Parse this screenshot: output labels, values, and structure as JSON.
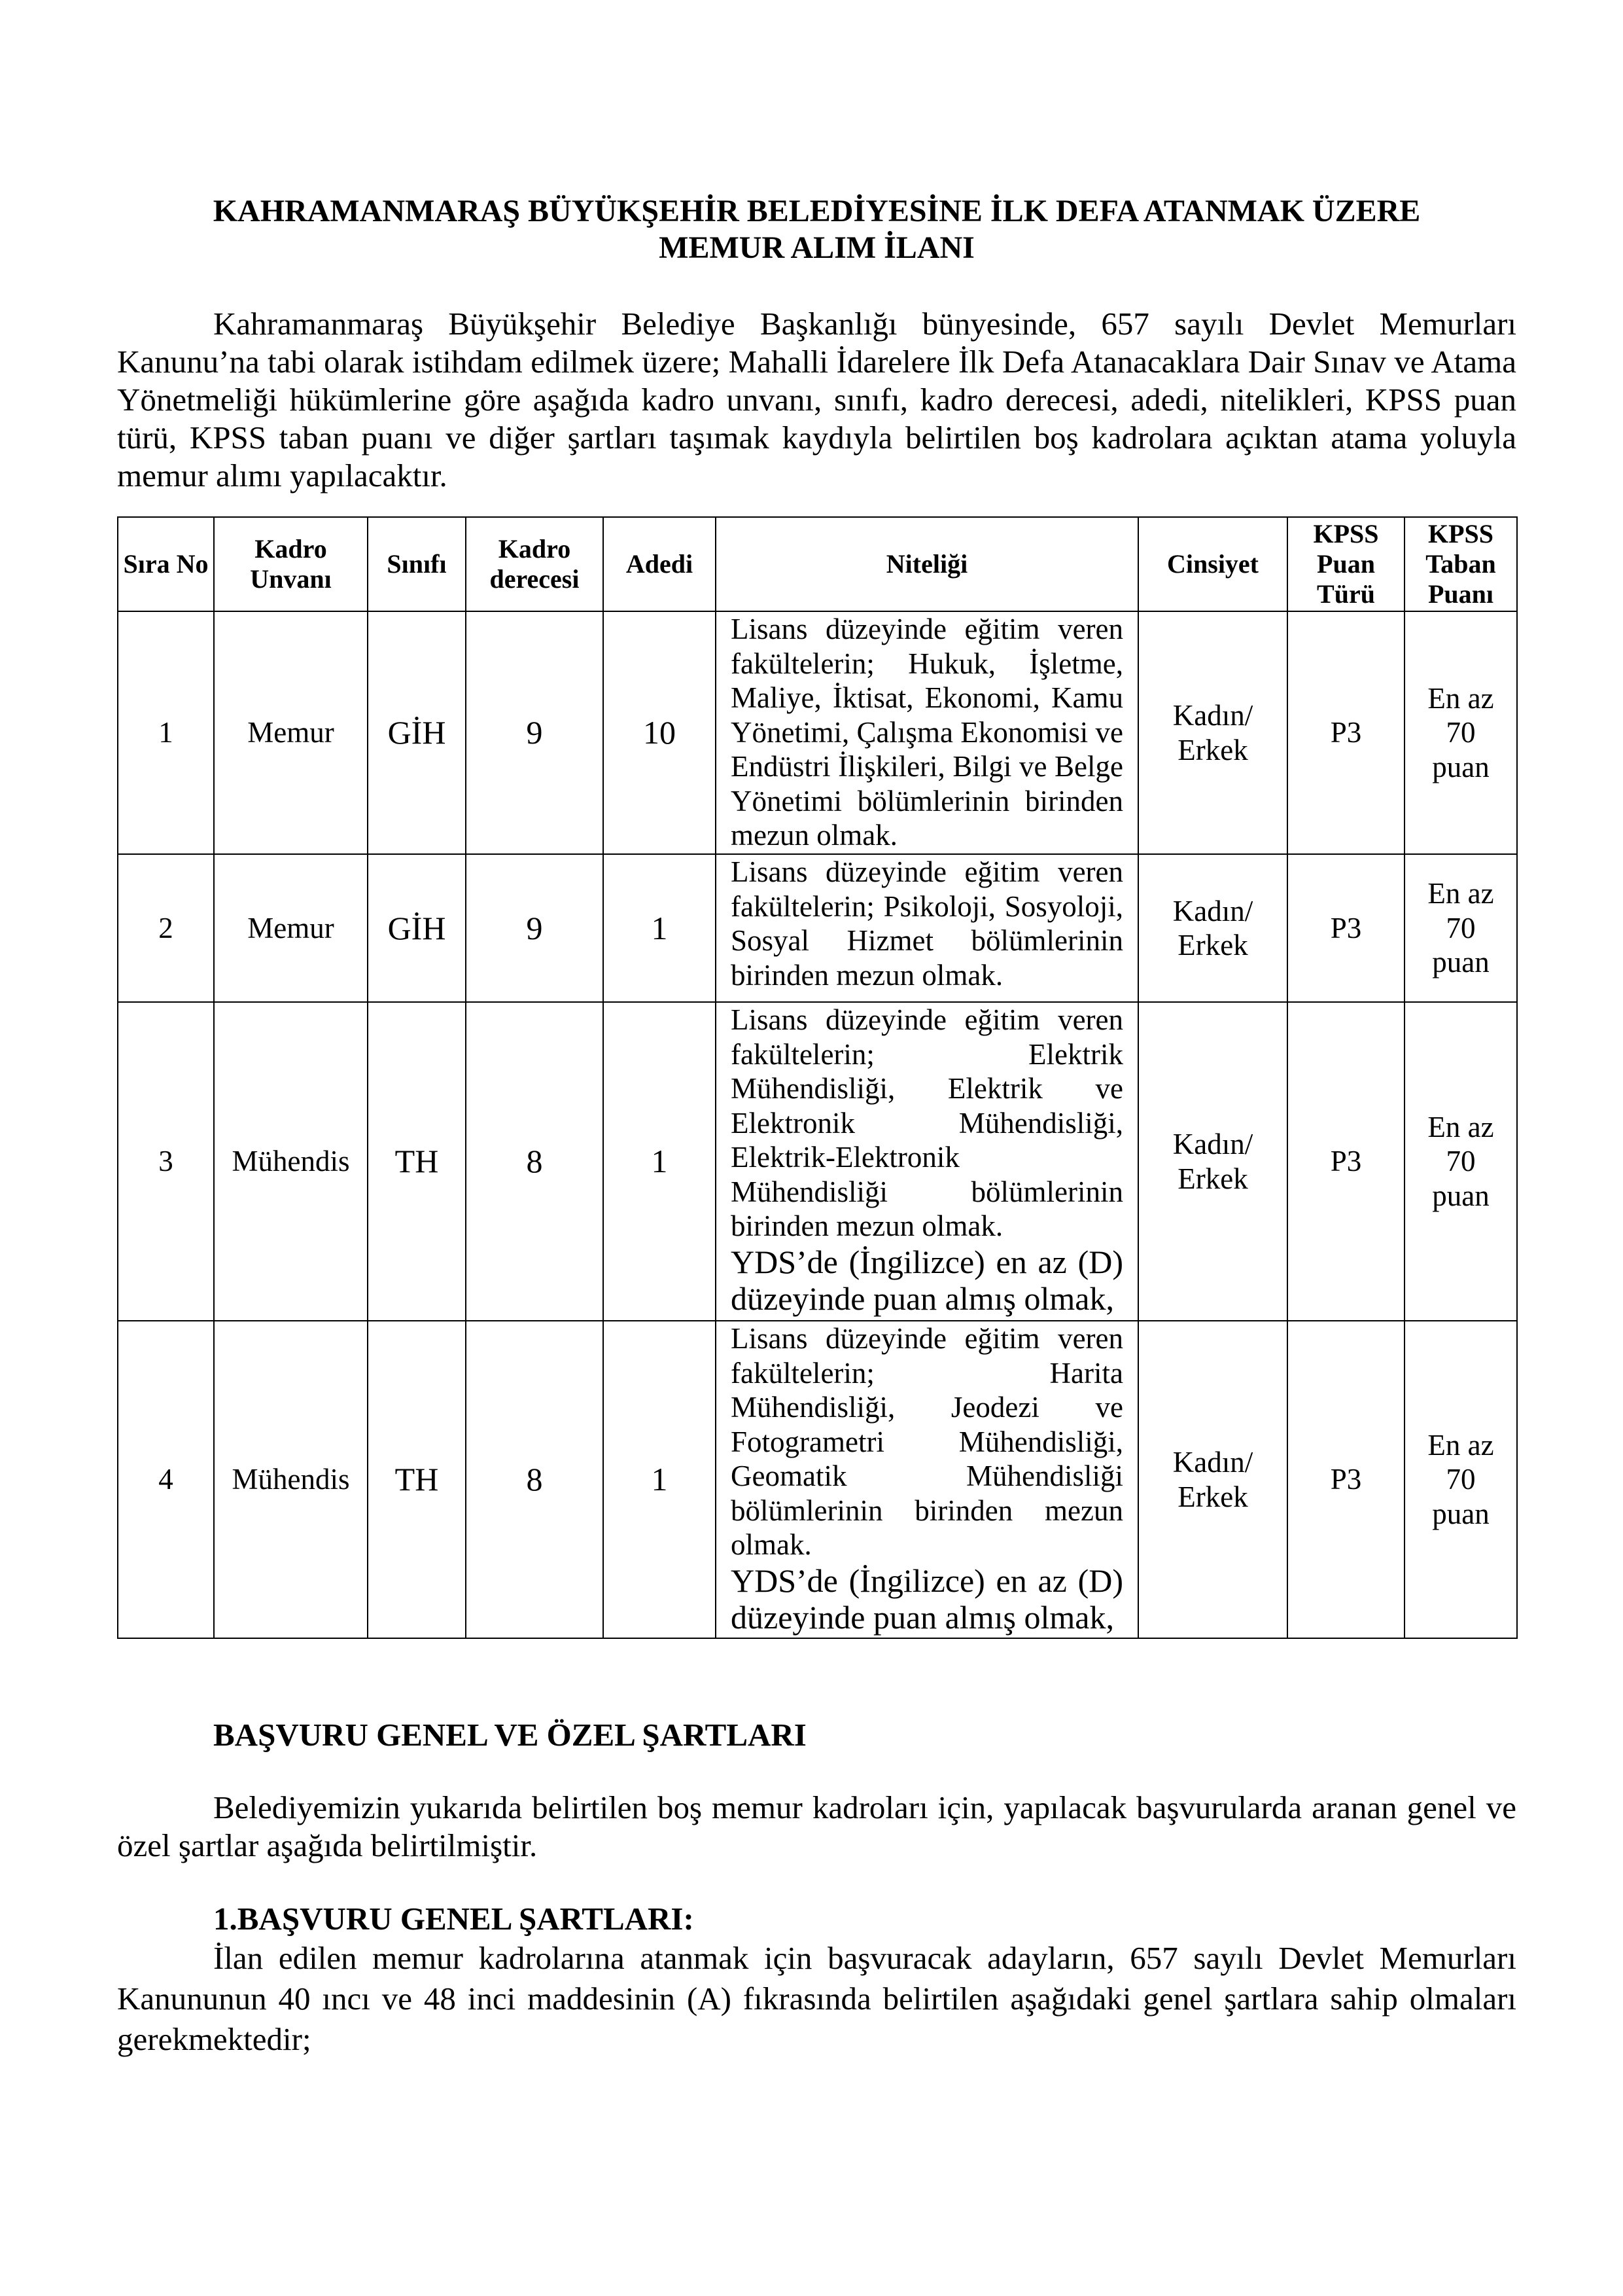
{
  "title": {
    "line1": "KAHRAMANMARAŞ BÜYÜKŞEHİR BELEDİYESİNE İLK DEFA ATANMAK ÜZERE",
    "line2": "MEMUR ALIM İLANI"
  },
  "intro": "Kahramanmaraş Büyükşehir Belediye Başkanlığı bünyesinde, 657 sayılı Devlet Memurları Kanunu’na tabi olarak istihdam edilmek üzere; Mahalli İdarelere İlk Defa Atanacaklara Dair Sınav ve Atama Yönetmeliği hükümlerine göre aşağıda kadro unvanı, sınıfı, kadro derecesi, adedi, nitelikleri, KPSS puan türü, KPSS taban puanı ve diğer şartları taşımak kaydıyla belirtilen boş kadrolara açıktan atama yoluyla memur alımı yapılacaktır.",
  "table": {
    "headers": [
      "Sıra No",
      "Kadro Unvanı",
      "Sınıfı",
      "Kadro derecesi",
      "Adedi",
      "Niteliği",
      "Cinsiyet",
      "KPSS Puan Türü",
      "KPSS Taban Puanı"
    ],
    "rows": [
      {
        "sira": "1",
        "unvan": "Memur",
        "sinif": "GİH",
        "derece": "9",
        "adet": "10",
        "nitelik": "Lisans düzeyinde eğitim veren fakültelerin; Hukuk, İşletme, Maliye, İktisat, Ekonomi, Kamu Yönetimi, Çalışma Ekonomisi ve Endüstri İlişkileri, Bilgi ve Belge Yönetimi bölümlerinin birinden mezun olmak.",
        "ek": "",
        "cinsiyet": "Kadın/ Erkek",
        "puan_turu": "P3",
        "taban": "En az 70 puan"
      },
      {
        "sira": "2",
        "unvan": "Memur",
        "sinif": "GİH",
        "derece": "9",
        "adet": "1",
        "nitelik": "Lisans düzeyinde eğitim veren fakültelerin; Psikoloji, Sosyoloji, Sosyal Hizmet bölümlerinin birinden mezun olmak.",
        "ek": "",
        "cinsiyet": "Kadın/ Erkek",
        "puan_turu": "P3",
        "taban": "En az 70 puan"
      },
      {
        "sira": "3",
        "unvan": "Mühendis",
        "sinif": "TH",
        "derece": "8",
        "adet": "1",
        "nitelik": "Lisans düzeyinde eğitim veren fakültelerin; Elektrik Mühendisliği, Elektrik ve Elektronik Mühendisliği, Elektrik-Elektronik Mühendisliği bölümlerinin birinden mezun olmak.",
        "ek": "YDS’de (İngilizce) en az (D) düzeyinde puan almış olmak,",
        "cinsiyet": "Kadın/ Erkek",
        "puan_turu": "P3",
        "taban": "En az 70 puan"
      },
      {
        "sira": "4",
        "unvan": "Mühendis",
        "sinif": "TH",
        "derece": "8",
        "adet": "1",
        "nitelik": "Lisans düzeyinde eğitim veren fakültelerin; Harita Mühendisliği, Jeodezi ve Fotogrametri Mühendisliği, Geomatik Mühendisliği bölümlerinin birinden mezun olmak.",
        "ek": "YDS’de (İngilizce) en az (D) düzeyinde puan almış olmak,",
        "cinsiyet": "Kadın/ Erkek",
        "puan_turu": "P3",
        "taban": "En az 70 puan"
      }
    ]
  },
  "section1": {
    "heading": "BAŞVURU GENEL VE ÖZEL ŞARTLARI",
    "text": "Belediyemizin yukarıda belirtilen boş memur kadroları için, yapılacak başvurularda aranan genel ve özel şartlar aşağıda belirtilmiştir."
  },
  "section2": {
    "heading": "1.BAŞVURU GENEL ŞARTLARI:",
    "text": "İlan edilen memur kadrolarına atanmak için başvuracak adayların, 657 sayılı Devlet Memurları Kanununun 40 ıncı ve 48 inci maddesinin (A) fıkrasında belirtilen aşağıdaki genel şartlara sahip olmaları gerekmektedir;"
  }
}
